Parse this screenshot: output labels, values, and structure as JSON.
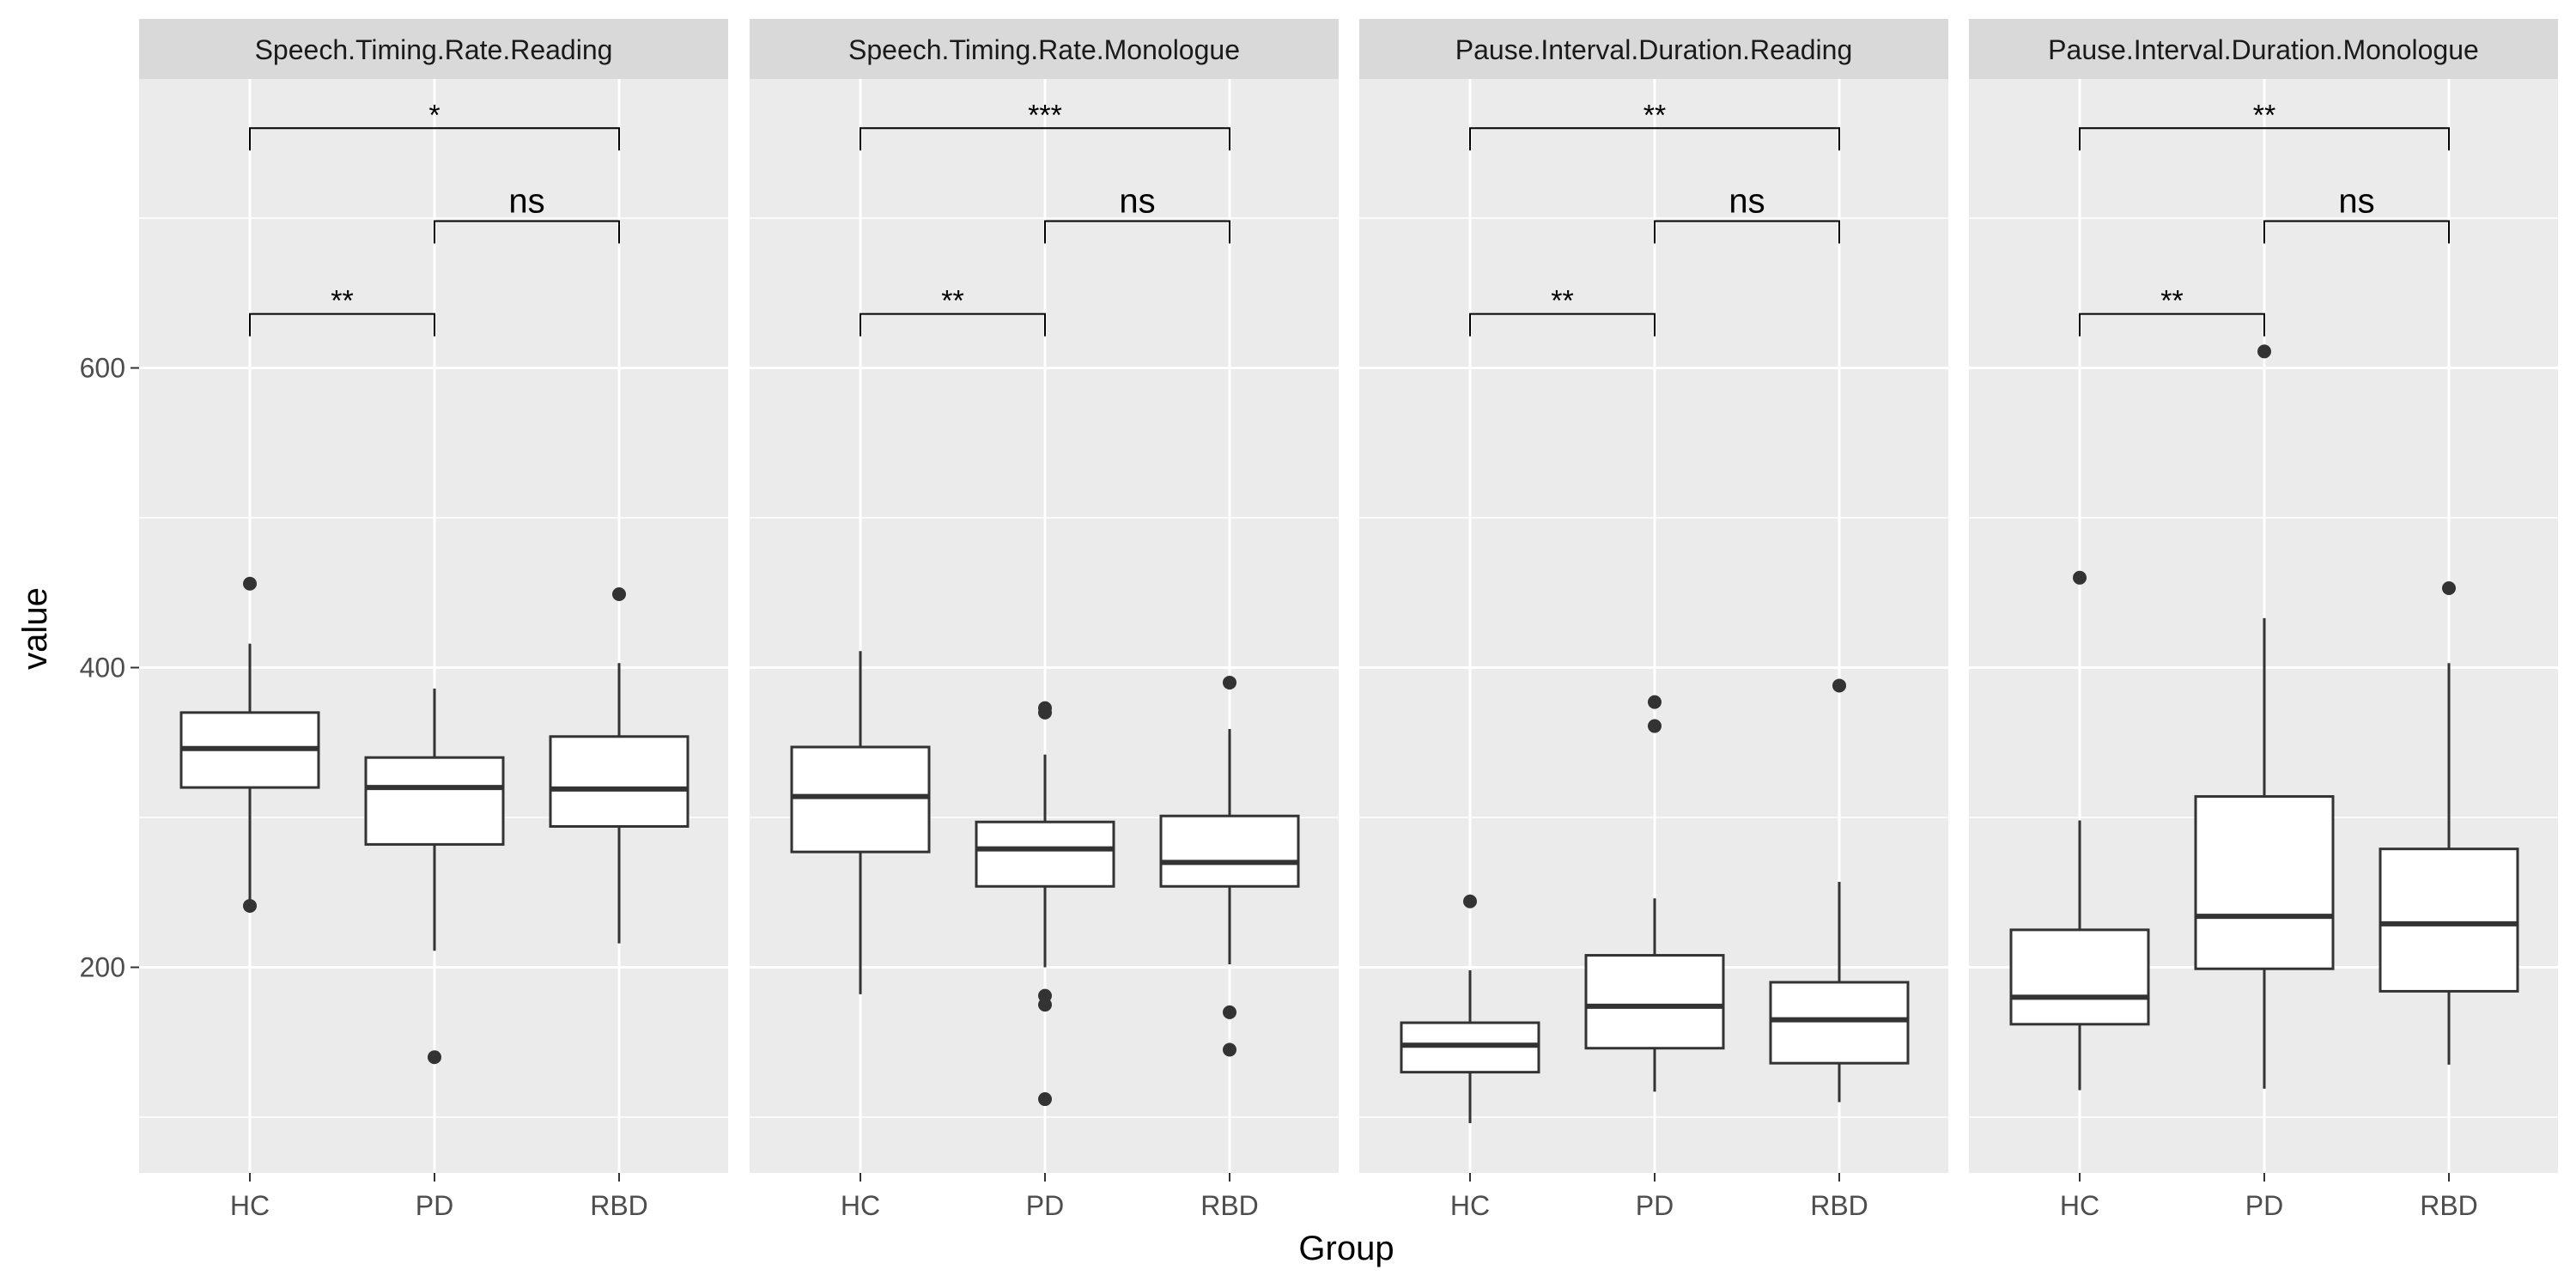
{
  "chart_data": {
    "type": "box",
    "xlabel": "Group",
    "ylabel": "value",
    "categories": [
      "HC",
      "PD",
      "RBD"
    ],
    "y_ticks": [
      200,
      400,
      600
    ],
    "ylim": [
      70,
      790
    ],
    "grid": true,
    "panels": [
      {
        "title": "Speech.Timing.Rate.Reading",
        "boxes": [
          {
            "group": "HC",
            "whisker_low": 245,
            "q1": 320,
            "median": 346,
            "q3": 370,
            "whisker_high": 416,
            "outliers": [
              456,
              241
            ]
          },
          {
            "group": "PD",
            "whisker_low": 211,
            "q1": 282,
            "median": 320,
            "q3": 340,
            "whisker_high": 386,
            "outliers": [
              140
            ]
          },
          {
            "group": "RBD",
            "whisker_low": 216,
            "q1": 294,
            "median": 319,
            "q3": 354,
            "whisker_high": 403,
            "outliers": [
              449
            ]
          }
        ],
        "comparisons": [
          {
            "from": "HC",
            "to": "PD",
            "y": 636,
            "label": "**"
          },
          {
            "from": "PD",
            "to": "RBD",
            "y": 698,
            "label": "ns"
          },
          {
            "from": "HC",
            "to": "RBD",
            "y": 760,
            "label": "*"
          }
        ]
      },
      {
        "title": "Speech.Timing.Rate.Monologue",
        "boxes": [
          {
            "group": "HC",
            "whisker_low": 182,
            "q1": 277,
            "median": 314,
            "q3": 347,
            "whisker_high": 411,
            "outliers": []
          },
          {
            "group": "PD",
            "whisker_low": 200,
            "q1": 254,
            "median": 279,
            "q3": 297,
            "whisker_high": 342,
            "outliers": [
              373,
              370,
              181,
              175,
              112
            ]
          },
          {
            "group": "RBD",
            "whisker_low": 202,
            "q1": 254,
            "median": 270,
            "q3": 301,
            "whisker_high": 359,
            "outliers": [
              390,
              170,
              145
            ]
          }
        ],
        "comparisons": [
          {
            "from": "HC",
            "to": "PD",
            "y": 636,
            "label": "**"
          },
          {
            "from": "PD",
            "to": "RBD",
            "y": 698,
            "label": "ns"
          },
          {
            "from": "HC",
            "to": "RBD",
            "y": 760,
            "label": "***"
          }
        ]
      },
      {
        "title": "Pause.Interval.Duration.Reading",
        "boxes": [
          {
            "group": "HC",
            "whisker_low": 96,
            "q1": 130,
            "median": 148,
            "q3": 163,
            "whisker_high": 198,
            "outliers": [
              244
            ]
          },
          {
            "group": "PD",
            "whisker_low": 117,
            "q1": 146,
            "median": 174,
            "q3": 208,
            "whisker_high": 246,
            "outliers": [
              377,
              361
            ]
          },
          {
            "group": "RBD",
            "whisker_low": 110,
            "q1": 136,
            "median": 165,
            "q3": 190,
            "whisker_high": 257,
            "outliers": [
              388
            ]
          }
        ],
        "comparisons": [
          {
            "from": "HC",
            "to": "PD",
            "y": 636,
            "label": "**"
          },
          {
            "from": "PD",
            "to": "RBD",
            "y": 698,
            "label": "ns"
          },
          {
            "from": "HC",
            "to": "RBD",
            "y": 760,
            "label": "**"
          }
        ]
      },
      {
        "title": "Pause.Interval.Duration.Monologue",
        "boxes": [
          {
            "group": "HC",
            "whisker_low": 118,
            "q1": 162,
            "median": 180,
            "q3": 225,
            "whisker_high": 298,
            "outliers": [
              460
            ]
          },
          {
            "group": "PD",
            "whisker_low": 119,
            "q1": 199,
            "median": 234,
            "q3": 314,
            "whisker_high": 433,
            "outliers": [
              611
            ]
          },
          {
            "group": "RBD",
            "whisker_low": 135,
            "q1": 184,
            "median": 229,
            "q3": 279,
            "whisker_high": 403,
            "outliers": [
              453
            ]
          }
        ],
        "comparisons": [
          {
            "from": "HC",
            "to": "PD",
            "y": 636,
            "label": "**"
          },
          {
            "from": "PD",
            "to": "RBD",
            "y": 698,
            "label": "ns"
          },
          {
            "from": "HC",
            "to": "RBD",
            "y": 760,
            "label": "**"
          }
        ]
      }
    ]
  }
}
